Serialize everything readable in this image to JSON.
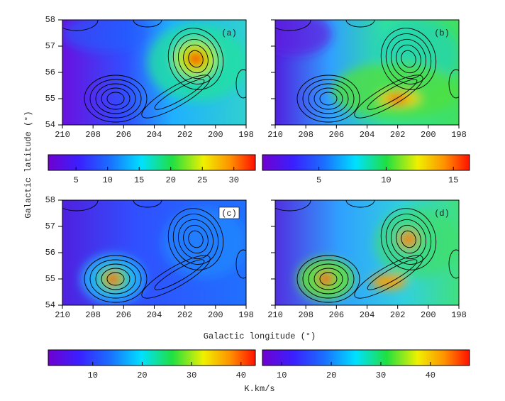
{
  "ylabel": "Galactic latitude (°)",
  "xlabel": "Galactic longitude (°)",
  "colorbar_label": "K.km/s",
  "chart_data": [
    {
      "type": "heatmap",
      "panel_label": "(a)",
      "xlim": [
        210,
        198
      ],
      "ylim": [
        54,
        58
      ],
      "xticks": [
        210,
        208,
        206,
        204,
        202,
        200,
        198
      ],
      "yticks": [
        54,
        55,
        56,
        57,
        58
      ],
      "ytick_labels": true,
      "colorbar": {
        "lim": [
          0.6,
          33.4
        ],
        "ticks": [
          5,
          10,
          15,
          20,
          25,
          30
        ]
      }
    },
    {
      "type": "heatmap",
      "panel_label": "(b)",
      "xlim": [
        210,
        198
      ],
      "ylim": [
        54,
        58
      ],
      "xticks": [
        210,
        208,
        206,
        204,
        202,
        200,
        198
      ],
      "yticks": [
        54,
        55,
        56,
        57,
        58
      ],
      "ytick_labels": false,
      "colorbar": {
        "lim": [
          0.8,
          16.2
        ],
        "ticks": [
          5,
          10,
          15
        ]
      }
    },
    {
      "type": "heatmap",
      "panel_label": "(c)",
      "xlim": [
        210,
        198
      ],
      "ylim": [
        54,
        58
      ],
      "xticks": [
        210,
        208,
        206,
        204,
        202,
        200,
        198
      ],
      "yticks": [
        54,
        55,
        56,
        57,
        58
      ],
      "ytick_labels": true,
      "colorbar": {
        "lim": [
          1,
          42.9
        ],
        "ticks": [
          10,
          20,
          30,
          40
        ]
      }
    },
    {
      "type": "heatmap",
      "panel_label": "(d)",
      "xlim": [
        210,
        198
      ],
      "ylim": [
        54,
        58
      ],
      "xticks": [
        210,
        208,
        206,
        204,
        202,
        200,
        198
      ],
      "yticks": [
        54,
        55,
        56,
        57,
        58
      ],
      "ytick_labels": false,
      "colorbar": {
        "lim": [
          6.1,
          47.9
        ],
        "ticks": [
          10,
          20,
          30,
          40
        ]
      }
    }
  ]
}
